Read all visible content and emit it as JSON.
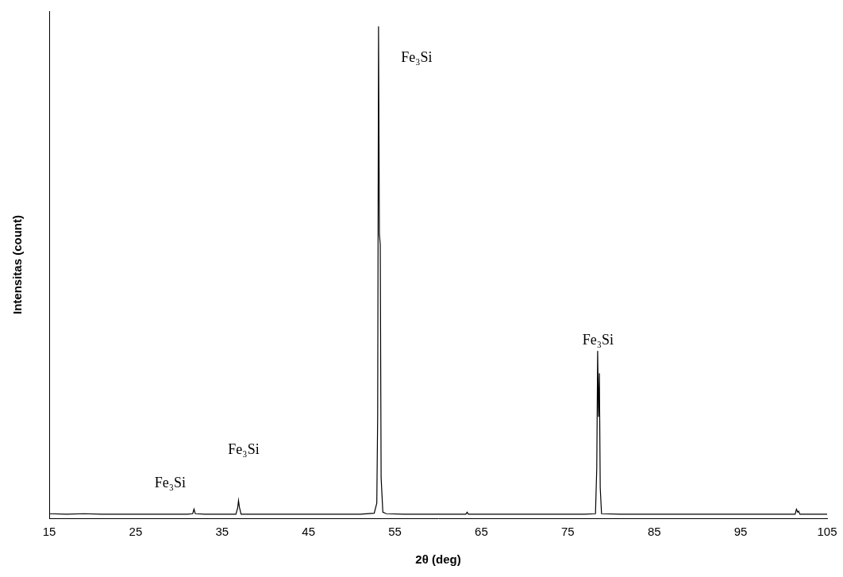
{
  "chart_data": {
    "type": "line",
    "x_label": "2θ (deg)",
    "y_label": "Intensitas (count)",
    "x": [
      15,
      17,
      19,
      21,
      23,
      25,
      27,
      29,
      31,
      31.6,
      31.75,
      31.9,
      33,
      35,
      36.6,
      36.8,
      36.9,
      37.0,
      37.2,
      39,
      41,
      43,
      45,
      47,
      49,
      51,
      52.6,
      52.9,
      53.0,
      53.1,
      53.2,
      53.3,
      53.4,
      53.6,
      54,
      56,
      58,
      60,
      62,
      63.2,
      63.35,
      63.5,
      65,
      67,
      69,
      71,
      73,
      75,
      77,
      78.2,
      78.35,
      78.45,
      78.55,
      78.65,
      78.75,
      78.9,
      81,
      83,
      85,
      87,
      89,
      91,
      93,
      95,
      97,
      99,
      101.3,
      101.45,
      101.6,
      101.7,
      101.85,
      103,
      105
    ],
    "values": [
      9,
      8,
      9,
      8,
      8,
      8,
      8,
      8,
      8,
      9,
      18,
      9,
      8,
      8,
      8,
      20,
      35,
      22,
      8,
      8,
      8,
      8,
      8,
      8,
      8,
      8,
      10,
      30,
      200,
      970,
      560,
      540,
      80,
      12,
      9,
      8,
      8,
      8,
      8,
      8,
      12,
      8,
      8,
      8,
      8,
      8,
      8,
      8,
      8,
      9,
      100,
      330,
      200,
      286,
      60,
      9,
      8,
      8,
      8,
      8,
      8,
      8,
      8,
      8,
      8,
      8,
      8,
      18,
      12,
      14,
      8,
      8,
      8
    ],
    "color": "#000000",
    "xlim": [
      15,
      105
    ],
    "xticks": [
      15,
      25,
      35,
      45,
      55,
      65,
      75,
      85,
      95,
      105
    ],
    "ylim": [
      0,
      1000
    ],
    "tick_labels": "x",
    "grid": false,
    "annotations": [
      {
        "text": "Fe₃Si",
        "x": 29,
        "y": 69
      },
      {
        "text": "Fe₃Si",
        "x": 37.5,
        "y": 134
      },
      {
        "text": "Fe₃Si",
        "x": 57.5,
        "y": 907
      },
      {
        "text": "Fe₃Si",
        "x": 78.5,
        "y": 350
      }
    ]
  }
}
